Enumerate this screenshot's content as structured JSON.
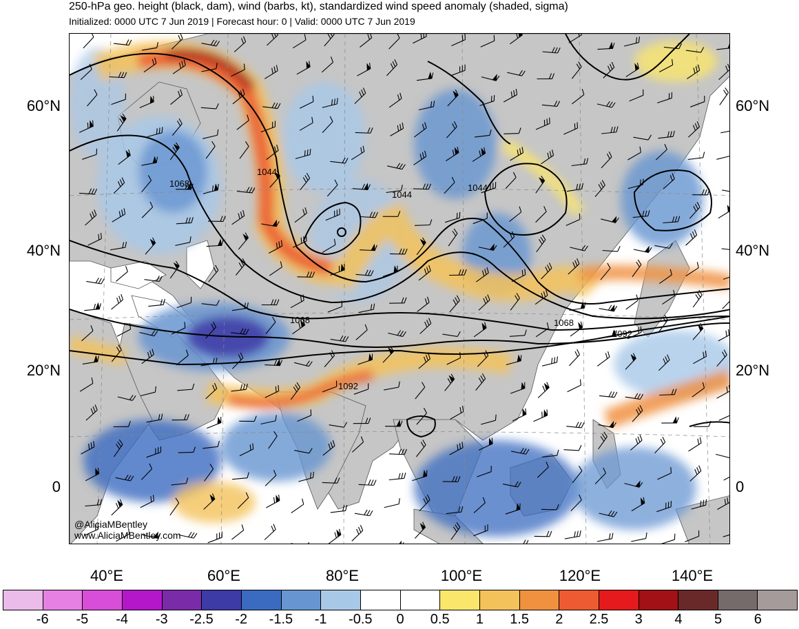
{
  "header": {
    "title": "250-hPa geo. height (black, dam), wind (barbs, kt), standardized wind speed anomaly (shaded, sigma)",
    "subtitle": "Initialized: 0000 UTC 7 Jun 2019 | Forecast hour: 0 | Valid: 0000 UTC 7 Jun 2019"
  },
  "map": {
    "lat_labels": [
      "60°N",
      "40°N",
      "20°N",
      "0"
    ],
    "lon_labels": [
      "40°E",
      "60°E",
      "80°E",
      "100°E",
      "120°E",
      "140°E"
    ],
    "contour_labels": [
      "1068",
      "1044",
      "1044",
      "1044",
      "1068",
      "1068",
      "1092",
      "1092"
    ],
    "credit": [
      "@AliciaMBentley",
      "www.AliciaMBentley.com"
    ]
  },
  "colorbar": {
    "labels": [
      "-6",
      "-5",
      "-4",
      "-3",
      "-2.5",
      "-2",
      "-1.5",
      "-1",
      "-0.5",
      "0",
      "0.5",
      "1",
      "1.5",
      "2",
      "2.5",
      "3",
      "4",
      "5",
      "6"
    ],
    "colors": [
      "#ebbbe9",
      "#e680e3",
      "#d94ed8",
      "#b317c9",
      "#7a2ca8",
      "#3d3ba6",
      "#3b6bc0",
      "#6795d1",
      "#a8c8e8",
      "#ffffff",
      "#ffffff",
      "#fbe66c",
      "#f4c25a",
      "#f0913f",
      "#ec5b31",
      "#e41a1c",
      "#a11116",
      "#6a2929",
      "#756b6b",
      "#a59b9b"
    ]
  },
  "palette": {
    "land": "#c6c6c6",
    "ocean": "#ffffff",
    "contour": "#000000",
    "border": "#5a5a5a"
  }
}
